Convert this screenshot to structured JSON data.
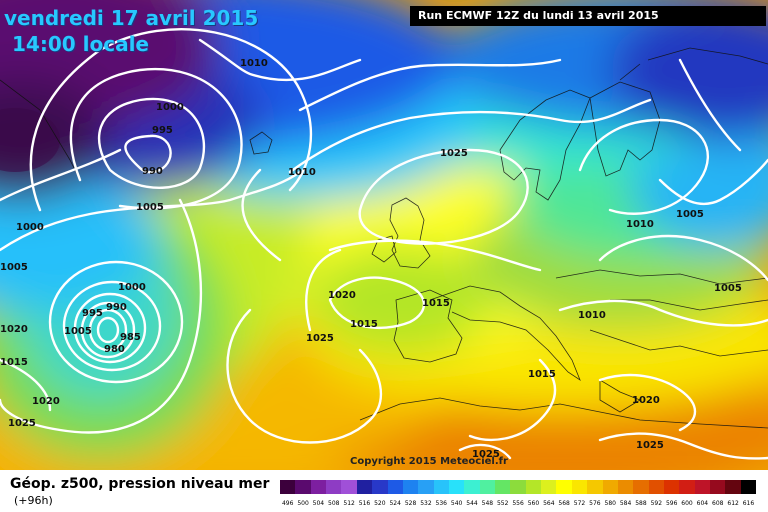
{
  "header": {
    "date": "vendredi 17 avril 2015",
    "time": "14:00 locale",
    "run": "Run ECMWF 12Z du lundi 13 avril 2015"
  },
  "copyright": "Copyright 2015 Meteociel.fr",
  "legend": {
    "field": "Géop. z500, pression niveau mer",
    "lead": "(+96h)",
    "scale_values": [
      "496",
      "500",
      "504",
      "508",
      "512",
      "516",
      "520",
      "524",
      "528",
      "532",
      "536",
      "540",
      "544",
      "548",
      "552",
      "556",
      "560",
      "564",
      "568",
      "572",
      "576",
      "580",
      "584",
      "588",
      "592",
      "596",
      "600",
      "604",
      "608",
      "612",
      "616"
    ],
    "scale_colors": [
      "#3c003c",
      "#5a0a6e",
      "#7d1fa0",
      "#8e3cc4",
      "#a050d8",
      "#2020a0",
      "#2838c8",
      "#1e5ae6",
      "#1e82f0",
      "#28a0f5",
      "#28c3fa",
      "#28e1fa",
      "#3cf0d2",
      "#50f0a0",
      "#64e664",
      "#8cdc3c",
      "#b4e628",
      "#dcf01e",
      "#ffff00",
      "#fae600",
      "#f5c800",
      "#f0aa00",
      "#eb8c00",
      "#e66e00",
      "#e15000",
      "#dc3200",
      "#d21e14",
      "#be1428",
      "#960a1e",
      "#64050f",
      "#000000"
    ]
  },
  "isobars": [
    {
      "label": "1010"
    },
    {
      "label": "1000"
    },
    {
      "label": "995"
    },
    {
      "label": "990"
    },
    {
      "label": "1005"
    },
    {
      "label": "1010"
    },
    {
      "label": "1025"
    },
    {
      "label": "1000"
    },
    {
      "label": "1005"
    },
    {
      "label": "1000"
    },
    {
      "label": "990"
    },
    {
      "label": "995"
    },
    {
      "label": "1005"
    },
    {
      "label": "985"
    },
    {
      "label": "980"
    },
    {
      "label": "1020"
    },
    {
      "label": "1015"
    },
    {
      "label": "1025"
    },
    {
      "label": "1015"
    },
    {
      "label": "1010"
    },
    {
      "label": "1005"
    },
    {
      "label": "1010"
    },
    {
      "label": "1005"
    },
    {
      "label": "1015"
    },
    {
      "label": "1020"
    },
    {
      "label": "1025"
    },
    {
      "label": "1015"
    },
    {
      "label": "1020"
    },
    {
      "label": "1025"
    },
    {
      "label": "1020"
    },
    {
      "label": "1025"
    },
    {
      "label": "1005"
    }
  ]
}
